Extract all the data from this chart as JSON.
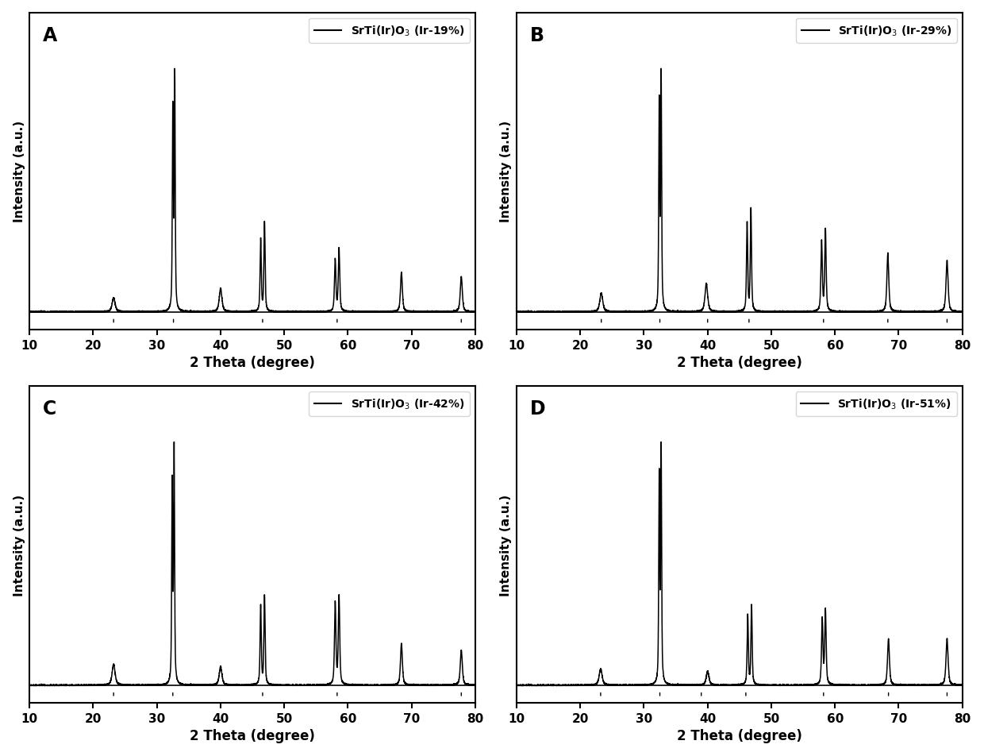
{
  "panels": [
    {
      "label": "A",
      "legend": "SrTi(Ir)O$_3$ (Ir-19%)"
    },
    {
      "label": "B",
      "legend": "SrTi(Ir)O$_3$ (Ir-29%)"
    },
    {
      "label": "C",
      "legend": "SrTi(Ir)O$_3$ (Ir-42%)"
    },
    {
      "label": "D",
      "legend": "SrTi(Ir)O$_3$ (Ir-51%)"
    }
  ],
  "xlabel": "2 Theta (degree)",
  "ylabel": "Intensity (a.u.)",
  "xlim": [
    10,
    80
  ],
  "xticks": [
    10,
    20,
    30,
    40,
    50,
    60,
    70,
    80
  ],
  "background_color": "#ffffff",
  "line_color": "#000000",
  "peaks": {
    "A": {
      "positions": [
        23.2,
        32.5,
        32.8,
        40.0,
        46.3,
        46.9,
        58.0,
        58.6,
        68.4,
        77.8
      ],
      "heights": [
        0.06,
        0.85,
        1.0,
        0.1,
        0.31,
        0.38,
        0.22,
        0.27,
        0.17,
        0.15
      ],
      "widths": [
        0.55,
        0.18,
        0.18,
        0.5,
        0.22,
        0.22,
        0.26,
        0.26,
        0.35,
        0.38
      ]
    },
    "B": {
      "positions": [
        23.3,
        32.4,
        32.7,
        39.8,
        46.2,
        46.8,
        57.9,
        58.5,
        68.3,
        77.6
      ],
      "heights": [
        0.08,
        0.88,
        1.0,
        0.12,
        0.38,
        0.44,
        0.3,
        0.35,
        0.25,
        0.22
      ],
      "widths": [
        0.55,
        0.18,
        0.18,
        0.5,
        0.22,
        0.22,
        0.26,
        0.26,
        0.35,
        0.38
      ]
    },
    "C": {
      "positions": [
        23.2,
        32.4,
        32.7,
        40.0,
        46.3,
        46.9,
        58.0,
        58.6,
        68.4,
        77.8
      ],
      "heights": [
        0.09,
        0.85,
        1.0,
        0.08,
        0.34,
        0.38,
        0.35,
        0.38,
        0.18,
        0.15
      ],
      "widths": [
        0.55,
        0.18,
        0.18,
        0.5,
        0.22,
        0.22,
        0.26,
        0.26,
        0.35,
        0.38
      ]
    },
    "D": {
      "positions": [
        23.2,
        32.4,
        32.7,
        40.0,
        46.3,
        46.9,
        58.0,
        58.5,
        68.4,
        77.6
      ],
      "heights": [
        0.07,
        0.88,
        1.0,
        0.06,
        0.3,
        0.34,
        0.28,
        0.32,
        0.2,
        0.2
      ],
      "widths": [
        0.55,
        0.18,
        0.18,
        0.5,
        0.22,
        0.22,
        0.26,
        0.26,
        0.35,
        0.38
      ]
    }
  },
  "tick_marks": {
    "A": [
      23.2,
      32.6,
      46.6,
      58.3,
      77.8
    ],
    "B": [
      23.3,
      32.5,
      40.0,
      46.5,
      58.2,
      68.3,
      77.6
    ],
    "C": [
      23.2,
      32.5,
      46.6,
      58.3,
      77.8
    ],
    "D": [
      23.2,
      32.5,
      39.0,
      46.0,
      58.2,
      68.4,
      77.6
    ]
  },
  "figsize": [
    12.4,
    9.53
  ],
  "dpi": 100
}
